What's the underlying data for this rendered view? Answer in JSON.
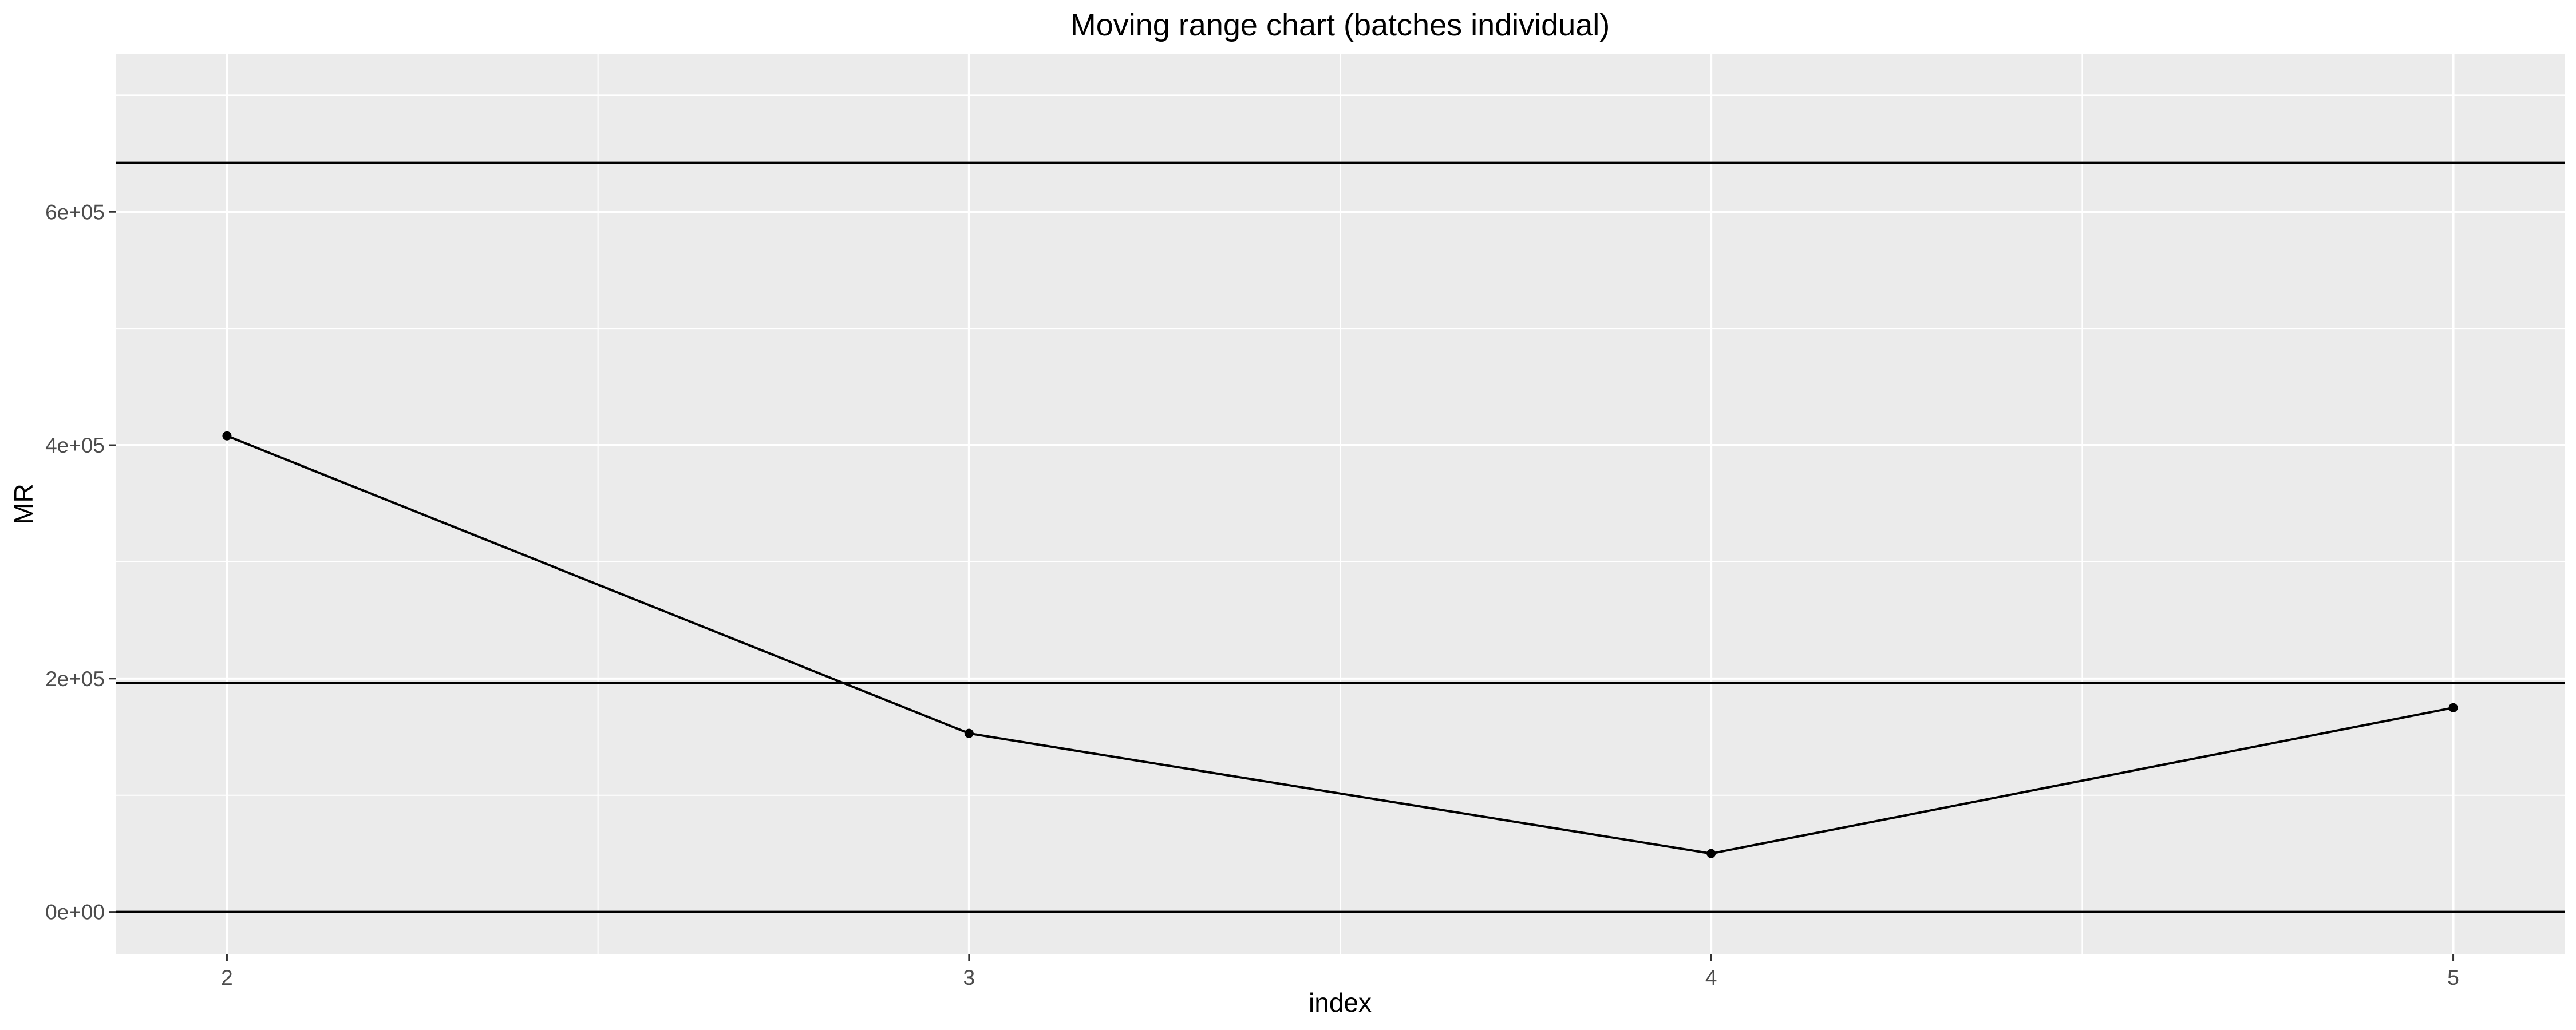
{
  "chart_data": {
    "type": "line",
    "title": "Moving range chart (batches individual)",
    "xlabel": "index",
    "ylabel": "MR",
    "x": [
      2,
      3,
      4,
      5
    ],
    "series": [
      {
        "values": [
          408000,
          153000,
          50000,
          175000
        ]
      }
    ],
    "reference_lines": [
      642000,
      196000,
      0
    ],
    "xlim": [
      1.85,
      5.15
    ],
    "ylim": [
      -36000,
      735000
    ],
    "x_ticks": [
      {
        "value": 2,
        "label": "2"
      },
      {
        "value": 3,
        "label": "3"
      },
      {
        "value": 4,
        "label": "4"
      },
      {
        "value": 5,
        "label": "5"
      }
    ],
    "y_ticks": [
      {
        "value": 0,
        "label": "0e+00"
      },
      {
        "value": 200000,
        "label": "2e+05"
      },
      {
        "value": 400000,
        "label": "4e+05"
      },
      {
        "value": 600000,
        "label": "6e+05"
      }
    ],
    "x_minor_ticks": [
      2.5,
      3.5,
      4.5
    ],
    "y_minor_ticks": [
      100000,
      300000,
      500000,
      700000
    ],
    "grid": true,
    "legend": "none",
    "colors": {
      "panel_background": "#EBEBEB",
      "grid": "#FFFFFF",
      "line": "#000000",
      "points": "#000000",
      "reference_lines": "#000000",
      "tick_labels": "#4D4D4D",
      "ticks": "#333333"
    }
  }
}
